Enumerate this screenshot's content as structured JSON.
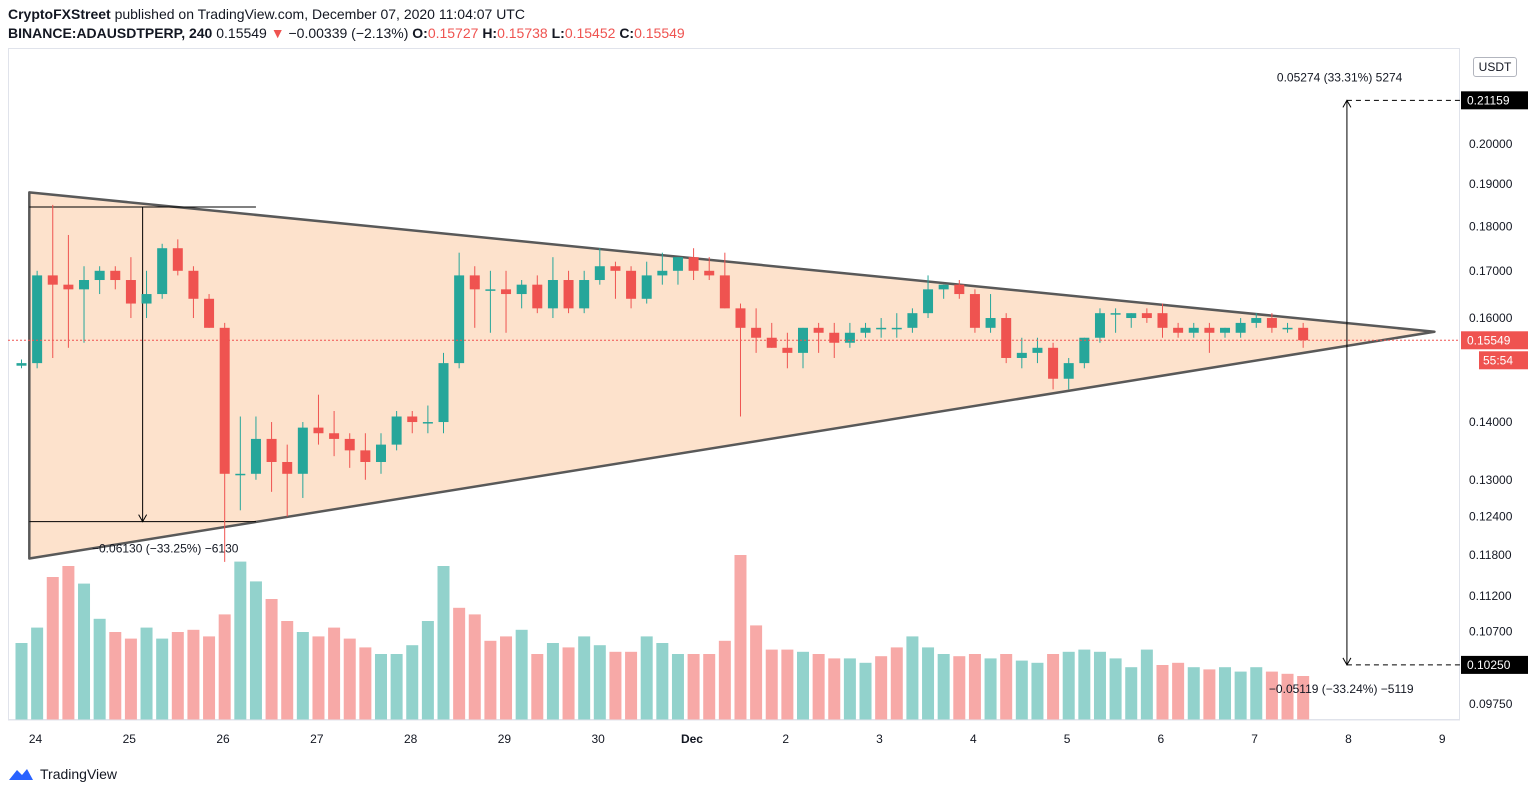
{
  "header": {
    "publisher": "CryptoFXStreet",
    "published_text": " published on TradingView.com, December 07, 2020 11:04:07 UTC",
    "symbol": "BINANCE:ADAUSDTPERP, 240",
    "last": "0.15549",
    "change_arrow": "▼",
    "change": "−0.00339 (−2.13%)",
    "o_label": "O:",
    "o": "0.15727",
    "h_label": "H:",
    "h": "0.15738",
    "l_label": "L:",
    "l": "0.15452",
    "c_label": "C:",
    "c": "0.15549"
  },
  "currency_button": "USDT",
  "footer": {
    "brand": "TradingView"
  },
  "colors": {
    "up": "#26a69a",
    "down": "#ef5350",
    "up_vol": "#92d2cc",
    "down_vol": "#f7a9a7",
    "triangle_fill": "#fde2cc",
    "triangle_stroke": "#595959"
  },
  "chart_data": {
    "type": "candlestick",
    "y_scale": "log",
    "ylim": [
      0.0955,
      0.226
    ],
    "y_ticks": [
      "0.20000",
      "0.19000",
      "0.18000",
      "0.17000",
      "0.16000",
      "0.14000",
      "0.13000",
      "0.12400",
      "0.11800",
      "0.11200",
      "0.10700",
      "0.09750"
    ],
    "y_tick_values": [
      0.2,
      0.19,
      0.18,
      0.17,
      0.16,
      0.14,
      0.13,
      0.124,
      0.118,
      0.112,
      0.107,
      0.0975
    ],
    "x_ticks": [
      "24",
      "25",
      "26",
      "27",
      "28",
      "29",
      "30",
      "Dec",
      "2",
      "3",
      "4",
      "5",
      "6",
      "7",
      "8",
      "9"
    ],
    "x_tick_index": [
      0,
      6,
      12,
      18,
      24,
      30,
      36,
      42,
      48,
      54,
      60,
      66,
      72,
      78,
      84,
      90
    ],
    "candles": [
      [
        0.1505,
        0.1517,
        0.15,
        0.151
      ],
      [
        0.151,
        0.17,
        0.15,
        0.169
      ],
      [
        0.169,
        0.185,
        0.152,
        0.167
      ],
      [
        0.167,
        0.178,
        0.154,
        0.166
      ],
      [
        0.166,
        0.171,
        0.155,
        0.168
      ],
      [
        0.168,
        0.171,
        0.165,
        0.17
      ],
      [
        0.17,
        0.171,
        0.166,
        0.168
      ],
      [
        0.168,
        0.173,
        0.16,
        0.163
      ],
      [
        0.163,
        0.17,
        0.16,
        0.165
      ],
      [
        0.165,
        0.176,
        0.164,
        0.175
      ],
      [
        0.175,
        0.177,
        0.169,
        0.17
      ],
      [
        0.17,
        0.171,
        0.16,
        0.164
      ],
      [
        0.164,
        0.165,
        0.158,
        0.158
      ],
      [
        0.158,
        0.159,
        0.117,
        0.131
      ],
      [
        0.131,
        0.141,
        0.125,
        0.131
      ],
      [
        0.131,
        0.141,
        0.13,
        0.137
      ],
      [
        0.137,
        0.14,
        0.128,
        0.133
      ],
      [
        0.133,
        0.136,
        0.124,
        0.131
      ],
      [
        0.131,
        0.14,
        0.127,
        0.139
      ],
      [
        0.139,
        0.145,
        0.136,
        0.138
      ],
      [
        0.138,
        0.142,
        0.134,
        0.137
      ],
      [
        0.137,
        0.138,
        0.132,
        0.135
      ],
      [
        0.135,
        0.138,
        0.13,
        0.133
      ],
      [
        0.133,
        0.138,
        0.131,
        0.136
      ],
      [
        0.136,
        0.142,
        0.135,
        0.141
      ],
      [
        0.141,
        0.142,
        0.138,
        0.14
      ],
      [
        0.14,
        0.143,
        0.138,
        0.14
      ],
      [
        0.14,
        0.153,
        0.138,
        0.151
      ],
      [
        0.151,
        0.174,
        0.15,
        0.169
      ],
      [
        0.169,
        0.171,
        0.158,
        0.166
      ],
      [
        0.166,
        0.17,
        0.157,
        0.166
      ],
      [
        0.166,
        0.17,
        0.157,
        0.165
      ],
      [
        0.165,
        0.168,
        0.162,
        0.167
      ],
      [
        0.167,
        0.169,
        0.161,
        0.162
      ],
      [
        0.162,
        0.173,
        0.16,
        0.168
      ],
      [
        0.168,
        0.17,
        0.161,
        0.162
      ],
      [
        0.162,
        0.17,
        0.161,
        0.168
      ],
      [
        0.168,
        0.175,
        0.167,
        0.171
      ],
      [
        0.171,
        0.172,
        0.164,
        0.17
      ],
      [
        0.17,
        0.171,
        0.162,
        0.164
      ],
      [
        0.164,
        0.172,
        0.163,
        0.169
      ],
      [
        0.169,
        0.174,
        0.167,
        0.17
      ],
      [
        0.17,
        0.173,
        0.167,
        0.173
      ],
      [
        0.173,
        0.175,
        0.168,
        0.17
      ],
      [
        0.17,
        0.173,
        0.168,
        0.169
      ],
      [
        0.169,
        0.174,
        0.162,
        0.162
      ],
      [
        0.162,
        0.163,
        0.141,
        0.158
      ],
      [
        0.158,
        0.162,
        0.153,
        0.156
      ],
      [
        0.156,
        0.159,
        0.154,
        0.154
      ],
      [
        0.154,
        0.157,
        0.15,
        0.153
      ],
      [
        0.153,
        0.158,
        0.15,
        0.158
      ],
      [
        0.158,
        0.159,
        0.153,
        0.157
      ],
      [
        0.157,
        0.159,
        0.152,
        0.155
      ],
      [
        0.155,
        0.159,
        0.154,
        0.157
      ],
      [
        0.157,
        0.159,
        0.156,
        0.158
      ],
      [
        0.158,
        0.16,
        0.156,
        0.158
      ],
      [
        0.158,
        0.161,
        0.156,
        0.158
      ],
      [
        0.158,
        0.162,
        0.157,
        0.161
      ],
      [
        0.161,
        0.169,
        0.16,
        0.166
      ],
      [
        0.166,
        0.167,
        0.164,
        0.167
      ],
      [
        0.167,
        0.168,
        0.164,
        0.165
      ],
      [
        0.165,
        0.166,
        0.157,
        0.158
      ],
      [
        0.158,
        0.165,
        0.157,
        0.16
      ],
      [
        0.16,
        0.161,
        0.151,
        0.152
      ],
      [
        0.152,
        0.156,
        0.15,
        0.153
      ],
      [
        0.153,
        0.156,
        0.151,
        0.154
      ],
      [
        0.154,
        0.155,
        0.146,
        0.148
      ],
      [
        0.148,
        0.152,
        0.146,
        0.151
      ],
      [
        0.151,
        0.156,
        0.15,
        0.156
      ],
      [
        0.156,
        0.162,
        0.155,
        0.161
      ],
      [
        0.161,
        0.162,
        0.157,
        0.161
      ],
      [
        0.16,
        0.161,
        0.158,
        0.161
      ],
      [
        0.161,
        0.162,
        0.159,
        0.16
      ],
      [
        0.161,
        0.163,
        0.156,
        0.158
      ],
      [
        0.158,
        0.159,
        0.156,
        0.157
      ],
      [
        0.157,
        0.159,
        0.156,
        0.158
      ],
      [
        0.158,
        0.159,
        0.153,
        0.157
      ],
      [
        0.157,
        0.158,
        0.156,
        0.158
      ],
      [
        0.157,
        0.16,
        0.156,
        0.159
      ],
      [
        0.159,
        0.161,
        0.158,
        0.16
      ],
      [
        0.16,
        0.161,
        0.157,
        0.158
      ],
      [
        0.158,
        0.159,
        0.157,
        0.158
      ],
      [
        0.158,
        0.159,
        0.154,
        0.1555
      ]
    ],
    "volume": [
      35,
      42,
      65,
      70,
      62,
      46,
      40,
      37,
      42,
      37,
      40,
      41,
      38,
      48,
      72,
      63,
      55,
      45,
      40,
      38,
      42,
      37,
      33,
      30,
      30,
      34,
      45,
      70,
      51,
      48,
      36,
      38,
      41,
      30,
      35,
      33,
      38,
      34,
      31,
      31,
      38,
      35,
      30,
      30,
      30,
      36,
      75,
      43,
      32,
      32,
      31,
      30,
      28,
      28,
      26,
      29,
      33,
      38,
      33,
      30,
      29,
      30,
      28,
      30,
      27,
      26,
      30,
      31,
      32,
      31,
      28,
      24,
      32,
      25,
      26,
      24,
      23,
      24,
      22,
      24,
      22,
      21,
      20
    ],
    "volume_is_up": [
      true,
      true,
      false,
      false,
      true,
      true,
      false,
      false,
      true,
      true,
      false,
      false,
      false,
      false,
      true,
      true,
      false,
      false,
      true,
      false,
      false,
      false,
      false,
      true,
      true,
      true,
      true,
      true,
      false,
      false,
      false,
      false,
      true,
      false,
      true,
      false,
      true,
      true,
      false,
      false,
      true,
      true,
      true,
      false,
      false,
      false,
      false,
      false,
      false,
      false,
      true,
      false,
      false,
      true,
      true,
      false,
      false,
      true,
      true,
      true,
      false,
      false,
      true,
      false,
      true,
      true,
      false,
      true,
      true,
      true,
      true,
      true,
      true,
      false,
      false,
      true,
      false,
      true,
      true,
      true,
      false,
      false,
      false
    ],
    "current_price_label": "0.15549",
    "countdown_label": "55:54",
    "target_high_label": "0.21159",
    "target_low_label": "0.10250",
    "target_high": 0.21159,
    "target_low": 0.1025,
    "annotation_up": "0.05274 (33.31%) 5274",
    "annotation_down": "−0.05119 (−33.24%) −5119",
    "annotation_pole": "−0.06130 (−33.25%) −6130",
    "triangle": {
      "upper_start": [
        0.5,
        0.188
      ],
      "lower_start": [
        0.5,
        0.1175
      ],
      "apex": [
        90.4,
        0.1572
      ]
    },
    "pole": {
      "top": 0.1845,
      "bottom": 0.1232,
      "x_start": 0.5,
      "x_end": 15
    },
    "measure_x": 84.8
  }
}
